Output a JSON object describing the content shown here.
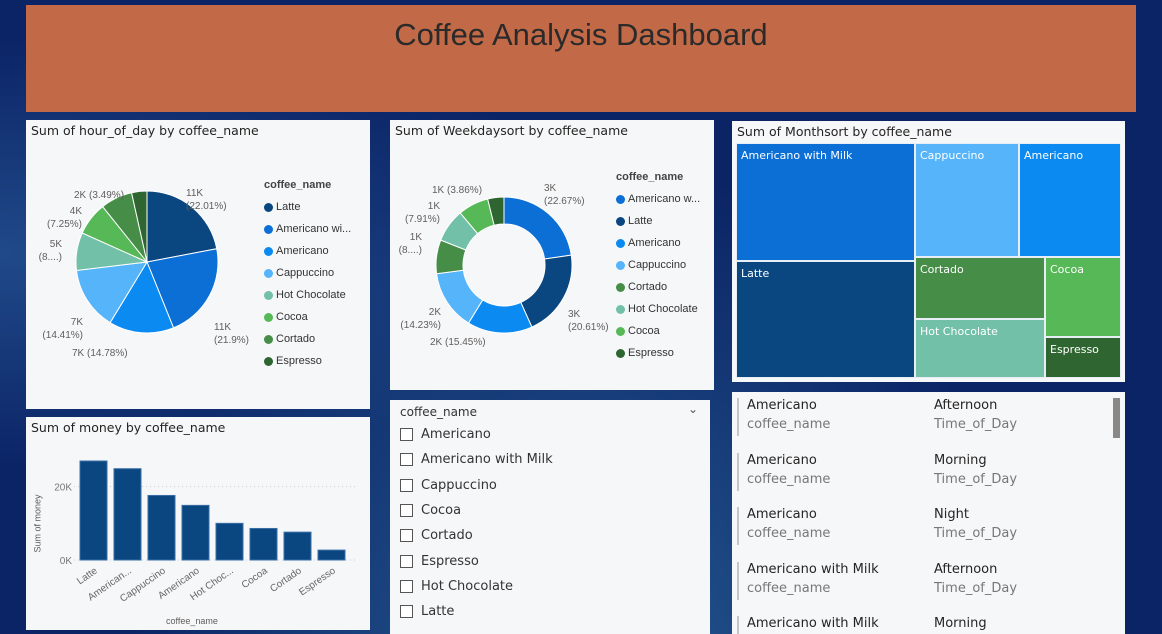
{
  "header": {
    "title": "Coffee Analysis Dashboard"
  },
  "colors": {
    "Latte": "#0a4680",
    "Americano with Milk": "#0b6fd6",
    "Americano": "#0b8af2",
    "Cappuccino": "#55b4fa",
    "Hot Chocolate": "#72c0a8",
    "Cocoa": "#57b858",
    "Cortado": "#468e48",
    "Espresso": "#2f6530"
  },
  "chart_data": [
    {
      "type": "pie",
      "title": "Sum of hour_of_day by coffee_name",
      "legend_title": "coffee_name",
      "legend": [
        "Latte",
        "Americano wi...",
        "Americano",
        "Cappuccino",
        "Hot Chocolate",
        "Cocoa",
        "Cortado",
        "Espresso"
      ],
      "slices": [
        {
          "name": "Latte",
          "pct": 22.01,
          "label": "11K (22.01%)"
        },
        {
          "name": "Americano with Milk",
          "pct": 21.9,
          "label": "11K (21.9%)"
        },
        {
          "name": "Americano",
          "pct": 14.78,
          "label": "7K (14.78%)"
        },
        {
          "name": "Cappuccino",
          "pct": 14.41,
          "label": "7K (14.41%)"
        },
        {
          "name": "Hot Chocolate",
          "pct": 8.6,
          "label": "5K (8....)"
        },
        {
          "name": "Cocoa",
          "pct": 7.56,
          "label": ""
        },
        {
          "name": "Cortado",
          "pct": 7.25,
          "label": "4K (7.25%)"
        },
        {
          "name": "Espresso",
          "pct": 3.49,
          "label": "2K (3.49%)"
        }
      ]
    },
    {
      "type": "donut",
      "title": "Sum of Weekdaysort by coffee_name",
      "legend_title": "coffee_name",
      "legend": [
        "Americano w...",
        "Latte",
        "Americano",
        "Cappuccino",
        "Cortado",
        "Hot Chocolate",
        "Cocoa",
        "Espresso"
      ],
      "slices": [
        {
          "name": "Americano with Milk",
          "pct": 22.67,
          "label": "3K (22.67%)"
        },
        {
          "name": "Latte",
          "pct": 20.61,
          "label": "3K (20.61%)"
        },
        {
          "name": "Americano",
          "pct": 15.45,
          "label": "2K (15.45%)"
        },
        {
          "name": "Cappuccino",
          "pct": 14.23,
          "label": "2K (14.23%)"
        },
        {
          "name": "Cortado",
          "pct": 8.0,
          "label": "1K (8....)"
        },
        {
          "name": "Hot Chocolate",
          "pct": 7.91,
          "label": "1K (7.91%)"
        },
        {
          "name": "Cocoa",
          "pct": 7.27,
          "label": ""
        },
        {
          "name": "Espresso",
          "pct": 3.86,
          "label": "1K (3.86%)"
        }
      ]
    },
    {
      "type": "bar",
      "title": "Sum of money by coffee_name",
      "xlabel": "coffee_name",
      "ylabel": "Sum of money",
      "yticks": [
        "0K",
        "20K"
      ],
      "ylim": [
        0,
        30000
      ],
      "categories": [
        "Latte",
        "American...",
        "Cappuccino",
        "Americano",
        "Hot Choc...",
        "Cocoa",
        "Cortado",
        "Espresso"
      ],
      "values": [
        27000,
        24900,
        17600,
        14900,
        10000,
        8600,
        7600,
        2700
      ]
    },
    {
      "type": "treemap",
      "title": "Sum of Monthsort by coffee_name",
      "items": [
        "Americano with Milk",
        "Cappuccino",
        "Americano",
        "Latte",
        "Cortado",
        "Cocoa",
        "Hot Chocolate",
        "Espresso"
      ]
    }
  ],
  "slicer": {
    "title": "coffee_name",
    "options": [
      "Americano",
      "Americano with Milk",
      "Cappuccino",
      "Cocoa",
      "Cortado",
      "Espresso",
      "Hot Chocolate",
      "Latte"
    ]
  },
  "card_list": {
    "rows": [
      {
        "name": "Americano",
        "name_label": "coffee_name",
        "time": "Afternoon",
        "time_label": "Time_of_Day"
      },
      {
        "name": "Americano",
        "name_label": "coffee_name",
        "time": "Morning",
        "time_label": "Time_of_Day"
      },
      {
        "name": "Americano",
        "name_label": "coffee_name",
        "time": "Night",
        "time_label": "Time_of_Day"
      },
      {
        "name": "Americano with Milk",
        "name_label": "coffee_name",
        "time": "Afternoon",
        "time_label": "Time_of_Day"
      },
      {
        "name": "Americano with Milk",
        "name_label": "coffee_name",
        "time": "Morning",
        "time_label": "Time_of_Day"
      }
    ]
  }
}
